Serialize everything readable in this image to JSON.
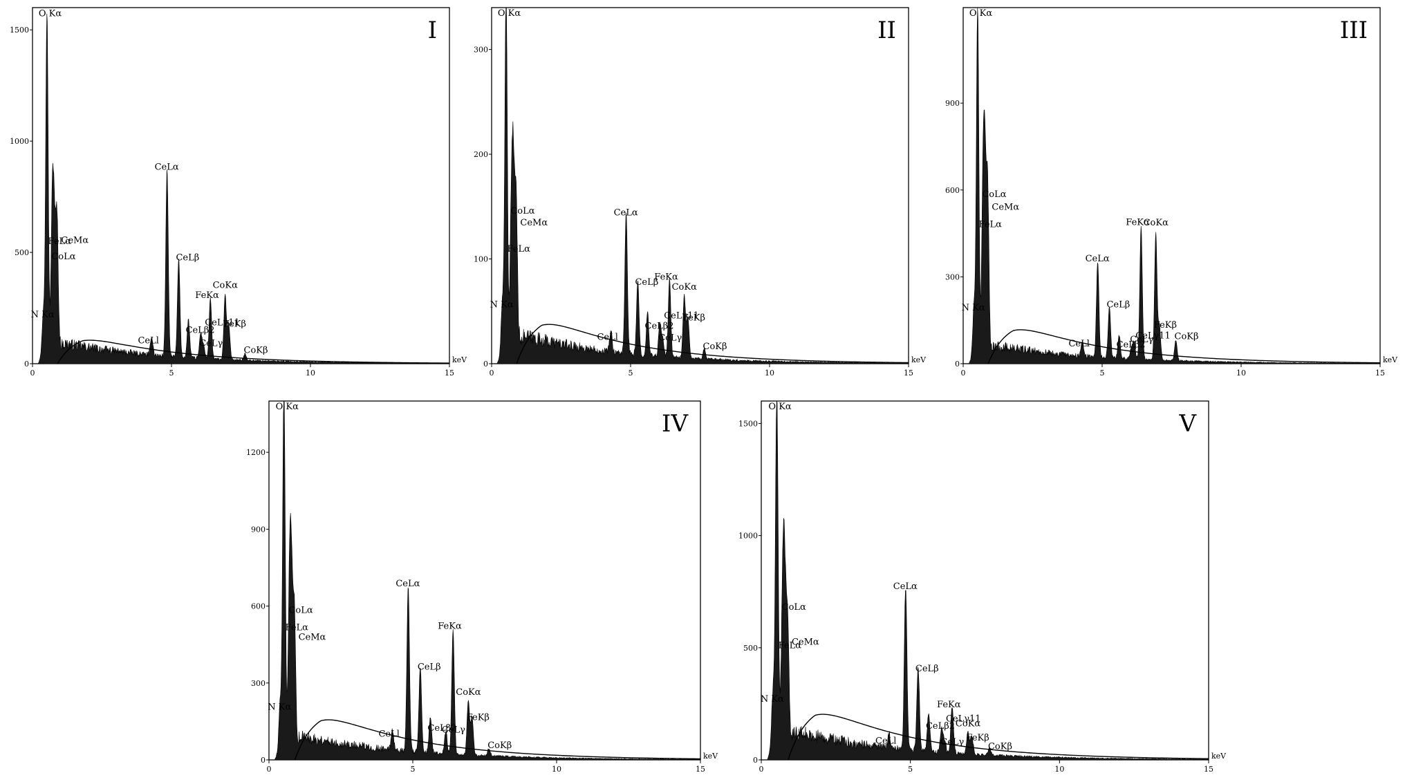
{
  "chart_data": [
    {
      "type": "line",
      "panel": "I",
      "xunit": "keV",
      "xticks": [
        0,
        5,
        10,
        15
      ],
      "yticks": [
        0,
        500,
        1000,
        1500
      ],
      "xlim": [
        0,
        15
      ],
      "ylim": [
        0,
        1600
      ],
      "noise": 110,
      "bremss": 135,
      "peaks": [
        {
          "label": "O Kα",
          "x": 0.52,
          "y": 1530
        },
        {
          "label": "FeLα",
          "x": 0.71,
          "y": 600
        },
        {
          "label": "CeMα",
          "x": 0.88,
          "y": 580
        },
        {
          "label": "N Kα",
          "x": 0.39,
          "y": 190
        },
        {
          "label": "CoLα",
          "x": 0.78,
          "y": 500
        },
        {
          "label": "CeLα",
          "x": 4.84,
          "y": 840
        },
        {
          "label": "CeLβ",
          "x": 5.26,
          "y": 440
        },
        {
          "label": "CeLβ2",
          "x": 5.61,
          "y": 170
        },
        {
          "label": "CeLγ11",
          "x": 6.05,
          "y": 110
        },
        {
          "label": "FeKα",
          "x": 6.4,
          "y": 270
        },
        {
          "label": "CoKα",
          "x": 6.93,
          "y": 290
        },
        {
          "label": "FeKβ",
          "x": 7.06,
          "y": 160
        },
        {
          "label": "CeLl",
          "x": 4.29,
          "y": 80
        },
        {
          "label": "CeLγ",
          "x": 6.15,
          "y": 60
        },
        {
          "label": "CoKβ",
          "x": 7.65,
          "y": 30
        }
      ]
    },
    {
      "type": "line",
      "panel": "II",
      "xunit": "keV",
      "xticks": [
        0,
        5,
        10,
        15
      ],
      "yticks": [
        0,
        100,
        200,
        300
      ],
      "ylim": [
        0,
        340
      ],
      "xlim": [
        0,
        15
      ],
      "noise": 32,
      "bremss": 48,
      "peaks": [
        {
          "label": "O Kα",
          "x": 0.52,
          "y": 340
        },
        {
          "label": "FeLα",
          "x": 0.71,
          "y": 120
        },
        {
          "label": "CoLα",
          "x": 0.78,
          "y": 150
        },
        {
          "label": "CeMα",
          "x": 0.88,
          "y": 140
        },
        {
          "label": "N Kα",
          "x": 0.39,
          "y": 50
        },
        {
          "label": "CeLα",
          "x": 4.84,
          "y": 135
        },
        {
          "label": "CeLβ",
          "x": 5.26,
          "y": 70
        },
        {
          "label": "CeLβ2",
          "x": 5.61,
          "y": 40
        },
        {
          "label": "CeLγ11",
          "x": 6.05,
          "y": 30
        },
        {
          "label": "FeKα",
          "x": 6.4,
          "y": 75
        },
        {
          "label": "CoKα",
          "x": 6.93,
          "y": 60
        },
        {
          "label": "FeKβ",
          "x": 7.06,
          "y": 40
        },
        {
          "label": "CeLl",
          "x": 4.29,
          "y": 20
        },
        {
          "label": "CeLγ",
          "x": 6.15,
          "y": 18
        },
        {
          "label": "CoKβ",
          "x": 7.65,
          "y": 10
        }
      ]
    },
    {
      "type": "line",
      "panel": "III",
      "xunit": "keV",
      "xticks": [
        0,
        5,
        10,
        15
      ],
      "yticks": [
        0,
        300,
        600,
        900
      ],
      "ylim": [
        0,
        1230
      ],
      "xlim": [
        0,
        15
      ],
      "noise": 75,
      "bremss": 150,
      "peaks": [
        {
          "label": "O Kα",
          "x": 0.52,
          "y": 1200
        },
        {
          "label": "FeLα",
          "x": 0.71,
          "y": 520
        },
        {
          "label": "CeMα",
          "x": 0.88,
          "y": 560
        },
        {
          "label": "CoLα",
          "x": 0.78,
          "y": 600
        },
        {
          "label": "N Kα",
          "x": 0.39,
          "y": 170
        },
        {
          "label": "CeLα",
          "x": 4.84,
          "y": 330
        },
        {
          "label": "CeLβ",
          "x": 5.26,
          "y": 175
        },
        {
          "label": "CeLβ2",
          "x": 5.61,
          "y": 80
        },
        {
          "label": "CeLγ",
          "x": 6.15,
          "y": 60
        },
        {
          "label": "CeLγ11",
          "x": 6.05,
          "y": 40
        },
        {
          "label": "FeKα",
          "x": 6.4,
          "y": 460
        },
        {
          "label": "CoKα",
          "x": 6.93,
          "y": 440
        },
        {
          "label": "FeKβ",
          "x": 7.06,
          "y": 120
        },
        {
          "label": "CeLl",
          "x": 4.29,
          "y": 50
        },
        {
          "label": "CoKβ",
          "x": 7.65,
          "y": 70
        }
      ]
    },
    {
      "type": "line",
      "panel": "IV",
      "xunit": "keV",
      "xticks": [
        0,
        5,
        10,
        15
      ],
      "yticks": [
        0,
        300,
        600,
        900,
        1200
      ],
      "ylim": [
        0,
        1400
      ],
      "xlim": [
        0,
        15
      ],
      "noise": 110,
      "bremss": 200,
      "peaks": [
        {
          "label": "O Kα",
          "x": 0.52,
          "y": 1400
        },
        {
          "label": "FeLα",
          "x": 0.71,
          "y": 560
        },
        {
          "label": "CeMα",
          "x": 0.88,
          "y": 500
        },
        {
          "label": "CoLα",
          "x": 0.78,
          "y": 600
        },
        {
          "label": "N Kα",
          "x": 0.39,
          "y": 180
        },
        {
          "label": "CeLα",
          "x": 4.84,
          "y": 650
        },
        {
          "label": "CeLβ",
          "x": 5.26,
          "y": 330
        },
        {
          "label": "CeLβ2",
          "x": 5.61,
          "y": 140
        },
        {
          "label": "CeLγ",
          "x": 6.15,
          "y": 90
        },
        {
          "label": "FeKα",
          "x": 6.4,
          "y": 490
        },
        {
          "label": "CoKα",
          "x": 6.93,
          "y": 210
        },
        {
          "label": "FeKβ",
          "x": 7.06,
          "y": 150
        },
        {
          "label": "CeLl",
          "x": 4.29,
          "y": 80
        },
        {
          "label": "CoKβ",
          "x": 7.65,
          "y": 30
        }
      ]
    },
    {
      "type": "line",
      "panel": "V",
      "xunit": "keV",
      "xticks": [
        0,
        5,
        10,
        15
      ],
      "yticks": [
        0,
        500,
        1000,
        1500
      ],
      "ylim": [
        0,
        1600
      ],
      "xlim": [
        0,
        15
      ],
      "noise": 150,
      "bremss": 260,
      "peaks": [
        {
          "label": "O Kα",
          "x": 0.52,
          "y": 1590
        },
        {
          "label": "FeLα",
          "x": 0.71,
          "y": 560
        },
        {
          "label": "CoLα",
          "x": 0.78,
          "y": 700
        },
        {
          "label": "CeMα",
          "x": 0.88,
          "y": 550
        },
        {
          "label": "N Kα",
          "x": 0.39,
          "y": 240
        },
        {
          "label": "CeLα",
          "x": 4.84,
          "y": 730
        },
        {
          "label": "CeLβ",
          "x": 5.26,
          "y": 370
        },
        {
          "label": "CeLβ2",
          "x": 5.61,
          "y": 170
        },
        {
          "label": "CeLγ11",
          "x": 6.05,
          "y": 110
        },
        {
          "label": "FeKα",
          "x": 6.4,
          "y": 210
        },
        {
          "label": "CoKα",
          "x": 6.93,
          "y": 100
        },
        {
          "label": "FeKβ",
          "x": 7.06,
          "y": 80
        },
        {
          "label": "CeLl",
          "x": 4.29,
          "y": 60
        },
        {
          "label": "CeLγ",
          "x": 6.15,
          "y": 50
        },
        {
          "label": "CoKβ",
          "x": 7.65,
          "y": 30
        }
      ]
    }
  ]
}
